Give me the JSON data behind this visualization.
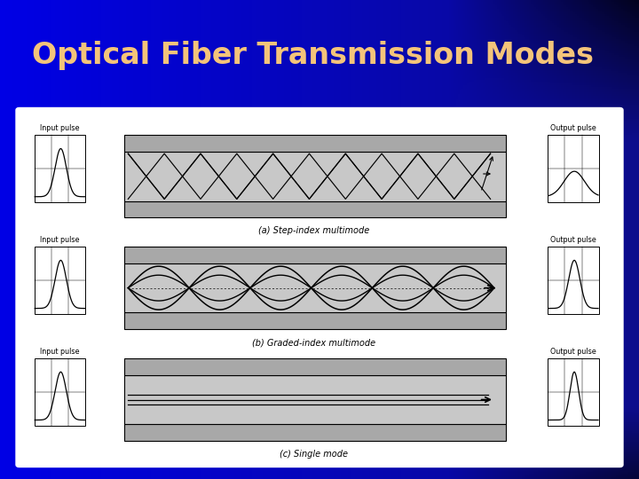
{
  "title": "Optical Fiber Transmission Modes",
  "title_color": "#F4C47A",
  "title_fontsize": 24,
  "bg_blue": "#0000cc",
  "bg_dark": "#000044",
  "panel_color": "#f0f0f0",
  "fiber_core_color": "#c8c8c8",
  "fiber_clad_color": "#a8a8a8",
  "captions": [
    "(a) Step-index multimode",
    "(b) Graded-index multimode",
    "(c) Single mode"
  ],
  "input_label": "Input pulse",
  "output_label": "Output pulse",
  "out_label_0": "Output pulse",
  "out_label_1": "Output pulse",
  "out_label_2": "Output pulse"
}
